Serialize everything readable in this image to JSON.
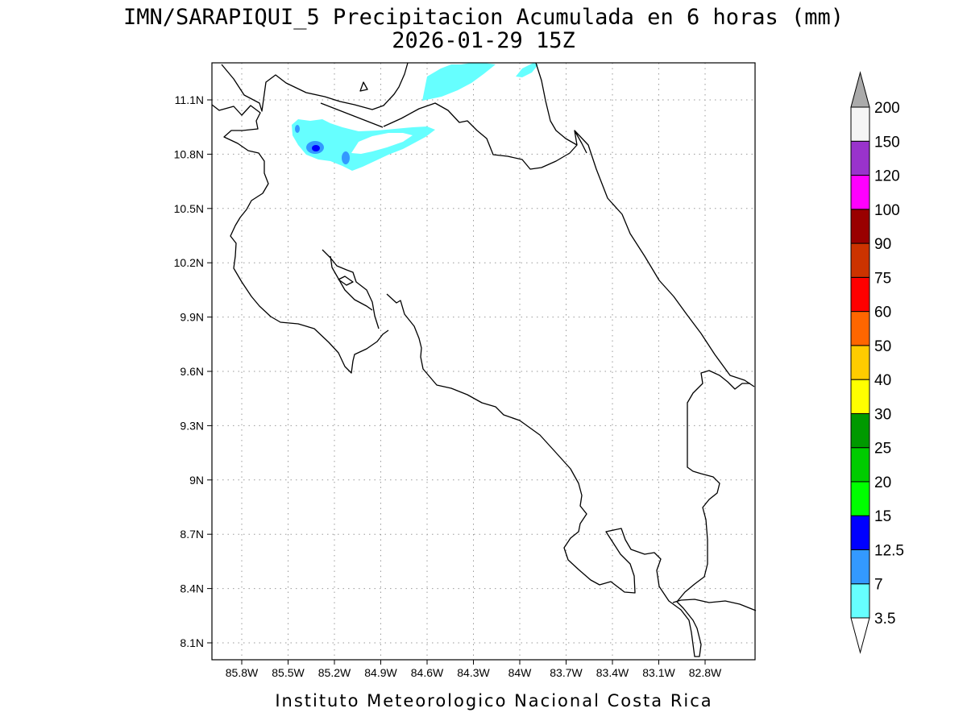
{
  "chart_data": {
    "type": "map",
    "title": "IMN/SARAPIQUI_5 Precipitacion Acumulada en 6 horas (mm)",
    "subtitle": "2026-01-29 15Z",
    "x_ticks": [
      "85.8W",
      "85.5W",
      "85.2W",
      "84.9W",
      "84.6W",
      "84.3W",
      "84W",
      "83.7W",
      "83.4W",
      "83.1W",
      "82.8W"
    ],
    "y_ticks": [
      "11.1N",
      "10.8N",
      "10.5N",
      "10.2N",
      "9.9N",
      "9.6N",
      "9.3N",
      "9N",
      "8.7N",
      "8.4N",
      "8.1N"
    ],
    "grid": true,
    "legend_placement": "right",
    "legend": {
      "levels": [
        "3.5",
        "7",
        "12.5",
        "15",
        "20",
        "25",
        "30",
        "40",
        "50",
        "60",
        "75",
        "90",
        "100",
        "120",
        "150",
        "200"
      ],
      "colors": [
        "#ffffff",
        "#66ffff",
        "#3399ff",
        "#0000ff",
        "#00ff00",
        "#00cc00",
        "#009900",
        "#ffff00",
        "#ffcc00",
        "#ff6600",
        "#ff0000",
        "#cc3300",
        "#990000",
        "#ff00ff",
        "#9933cc",
        "#f5f5f5",
        "#aaaaaa"
      ]
    },
    "coast_color": "#000000",
    "precip_colors": {
      "light": "#66ffff",
      "moderate": "#3399ff",
      "heavy": "#0000ff"
    }
  },
  "footer": {
    "credit": "Instituto Meteorologico Nacional Costa Rica"
  }
}
